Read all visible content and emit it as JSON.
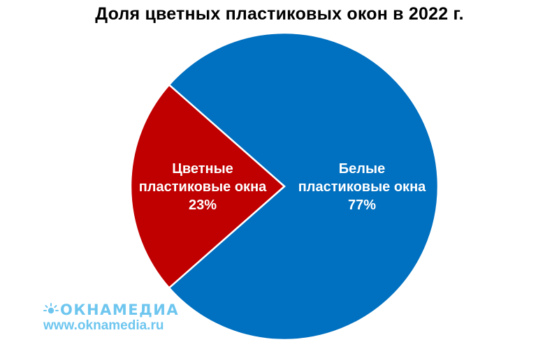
{
  "chart_data": {
    "type": "pie",
    "title": "Доля цветных пластиковых окон в 2022 г.",
    "slices": [
      {
        "label_lines": [
          "Белые",
          "пластиковые окна"
        ],
        "value_label": "77%",
        "value": 77,
        "color": "#0070c0"
      },
      {
        "label_lines": [
          "Цветные",
          "пластиковые окна"
        ],
        "value_label": "23%",
        "value": 23,
        "color": "#c00000"
      }
    ],
    "legend": "none"
  },
  "watermark": {
    "logo_text": "ОКНАМЕДИА",
    "url": "www.oknamedia.ru",
    "color": "#6ec6ef"
  }
}
